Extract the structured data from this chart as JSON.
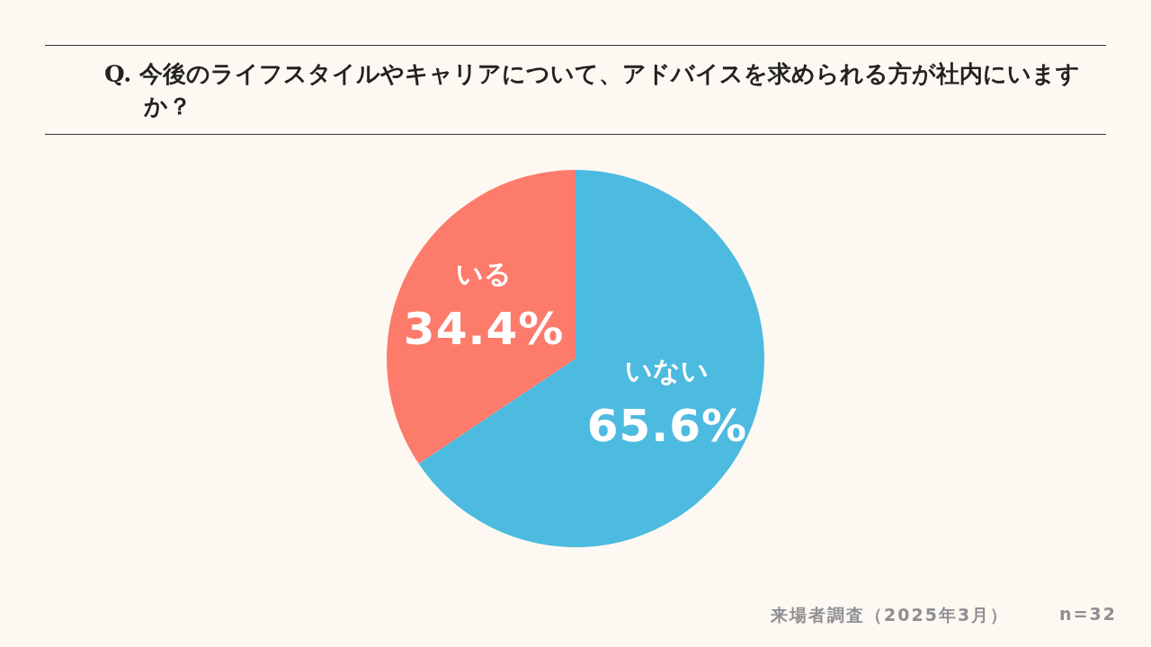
{
  "chart_data": {
    "type": "pie",
    "title": "Q. 今後のライフスタイルやキャリアについて、アドバイスを求められる方が社内にいますか？",
    "categories": [
      "いない",
      "いる"
    ],
    "values": [
      65.6,
      34.4
    ],
    "colors": [
      "#4dbadf",
      "#fd7b6b"
    ],
    "value_labels": [
      "65.6%",
      "34.4%"
    ],
    "annotations": [
      "来場者調査（2025年3月）",
      "n=32"
    ]
  }
}
